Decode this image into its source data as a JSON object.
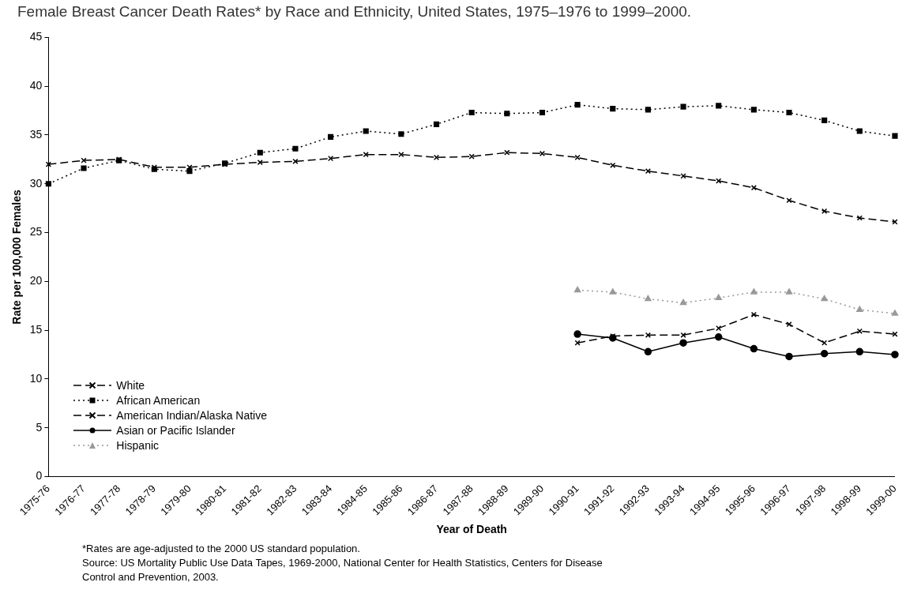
{
  "chart_data": {
    "type": "line",
    "title": "Female Breast Cancer Death Rates* by Race and Ethnicity, United States, 1975–1976 to 1999–2000.",
    "xlabel": "Year of Death",
    "ylabel": "Rate per 100,000 Females",
    "categories": [
      "1975-76",
      "1976-77",
      "1977-78",
      "1978-79",
      "1979-80",
      "1980-81",
      "1981-82",
      "1982-83",
      "1983-84",
      "1984-85",
      "1985-86",
      "1986-87",
      "1987-88",
      "1988-89",
      "1989-90",
      "1990-91",
      "1991-92",
      "1992-93",
      "1993-94",
      "1994-95",
      "1995-96",
      "1996-97",
      "1997-98",
      "1998-99",
      "1999-00"
    ],
    "series": [
      {
        "name": "White",
        "color": "#000000",
        "marker": "cross",
        "line_style": "dashed",
        "values": [
          32.0,
          32.4,
          32.5,
          31.7,
          31.7,
          32.0,
          32.2,
          32.3,
          32.6,
          33.0,
          33.0,
          32.7,
          32.8,
          33.2,
          33.1,
          32.7,
          31.9,
          31.3,
          30.8,
          30.3,
          29.6,
          28.3,
          27.2,
          26.5,
          26.1
        ]
      },
      {
        "name": "African American",
        "color": "#000000",
        "marker": "square",
        "line_style": "dotted",
        "values": [
          30.0,
          31.6,
          32.4,
          31.5,
          31.3,
          32.1,
          33.2,
          33.6,
          34.8,
          35.4,
          35.1,
          36.1,
          37.3,
          37.2,
          37.3,
          38.1,
          37.7,
          37.6,
          37.9,
          38.0,
          37.6,
          37.3,
          36.5,
          35.4,
          34.9
        ]
      },
      {
        "name": "American Indian/Alaska Native",
        "color": "#000000",
        "marker": "cross",
        "line_style": "dashed",
        "values": [
          null,
          null,
          null,
          null,
          null,
          null,
          null,
          null,
          null,
          null,
          null,
          null,
          null,
          null,
          null,
          13.7,
          14.4,
          14.5,
          14.5,
          15.2,
          16.6,
          15.6,
          13.7,
          14.9,
          14.6
        ]
      },
      {
        "name": "Asian or Pacific Islander",
        "color": "#000000",
        "marker": "circle",
        "line_style": "solid",
        "values": [
          null,
          null,
          null,
          null,
          null,
          null,
          null,
          null,
          null,
          null,
          null,
          null,
          null,
          null,
          null,
          14.6,
          14.2,
          12.8,
          13.7,
          14.3,
          13.1,
          12.3,
          12.6,
          12.8,
          12.5
        ]
      },
      {
        "name": "Hispanic",
        "color": "#999999",
        "marker": "triangle",
        "line_style": "dotted",
        "values": [
          null,
          null,
          null,
          null,
          null,
          null,
          null,
          null,
          null,
          null,
          null,
          null,
          null,
          null,
          null,
          19.1,
          18.9,
          18.2,
          17.8,
          18.3,
          18.9,
          18.9,
          18.2,
          17.1,
          16.7
        ]
      }
    ],
    "ylim": [
      0,
      45
    ],
    "yticks": [
      0,
      5,
      10,
      15,
      20,
      25,
      30,
      35,
      40,
      45
    ],
    "grid": false,
    "legend": "bottom left",
    "annotations": [
      "*Rates are age-adjusted to the 2000 US standard population.",
      "Source: US Mortality Public Use Data Tapes, 1969-2000, National Center for Health Statistics, Centers for Disease Control and Prevention, 2003."
    ]
  }
}
